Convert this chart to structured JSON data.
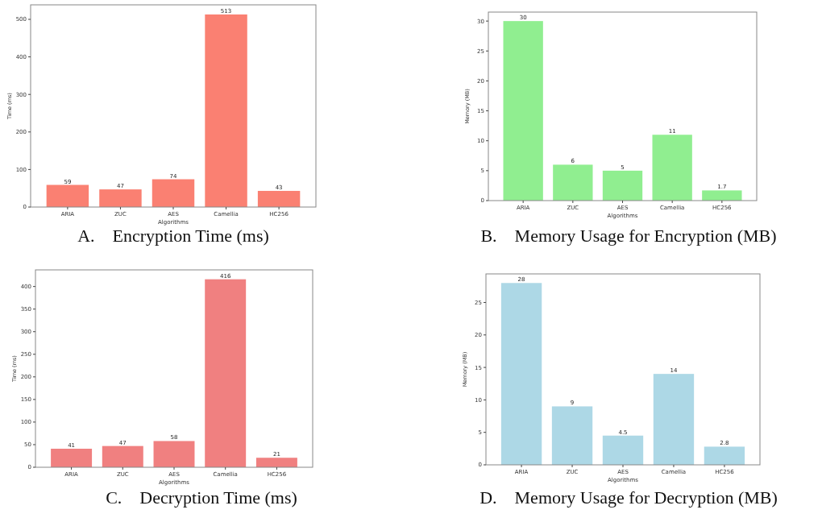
{
  "chart_data": [
    {
      "type": "bar",
      "title": "A.    Encryption Time (ms)",
      "xlabel": "Algorithms",
      "ylabel": "Time (ms)",
      "categories": [
        "ARIA",
        "ZUC",
        "AES",
        "Camellia",
        "HC256"
      ],
      "values": [
        59,
        47,
        74,
        513,
        43
      ],
      "color": "#fa8072",
      "ylim": [
        0,
        538.65
      ],
      "yticks": [
        0,
        100,
        200,
        300,
        400,
        500
      ],
      "data_labels": true
    },
    {
      "type": "bar",
      "title": "B.    Memory Usage for Encryption (MB)",
      "xlabel": "Algorithms",
      "ylabel": "Memory (MB)",
      "categories": [
        "ARIA",
        "ZUC",
        "AES",
        "Camellia",
        "HC256"
      ],
      "values": [
        30,
        6,
        5,
        11,
        1.7
      ],
      "color": "#90ee90",
      "ylim": [
        0,
        31.5
      ],
      "yticks": [
        0,
        5,
        10,
        15,
        20,
        25,
        30
      ],
      "data_labels": true
    },
    {
      "type": "bar",
      "title": "C.    Decryption Time (ms)",
      "xlabel": "Algorithms",
      "ylabel": "Time (ms)",
      "categories": [
        "ARIA",
        "ZUC",
        "AES",
        "Camellia",
        "HC256"
      ],
      "values": [
        41,
        47,
        58,
        416,
        21
      ],
      "color": "#f08080",
      "ylim": [
        0,
        436.8
      ],
      "yticks": [
        0,
        50,
        100,
        150,
        200,
        250,
        300,
        350,
        400
      ],
      "data_labels": true
    },
    {
      "type": "bar",
      "title": "D.    Memory Usage for Decryption (MB)",
      "xlabel": "Algorithms",
      "ylabel": "Memory (MB)",
      "categories": [
        "ARIA",
        "ZUC",
        "AES",
        "Camellia",
        "HC256"
      ],
      "values": [
        28,
        9,
        4.5,
        14,
        2.8
      ],
      "color": "#add8e6",
      "ylim": [
        0,
        29.4
      ],
      "yticks": [
        0,
        5,
        10,
        15,
        20,
        25
      ],
      "data_labels": true
    }
  ]
}
